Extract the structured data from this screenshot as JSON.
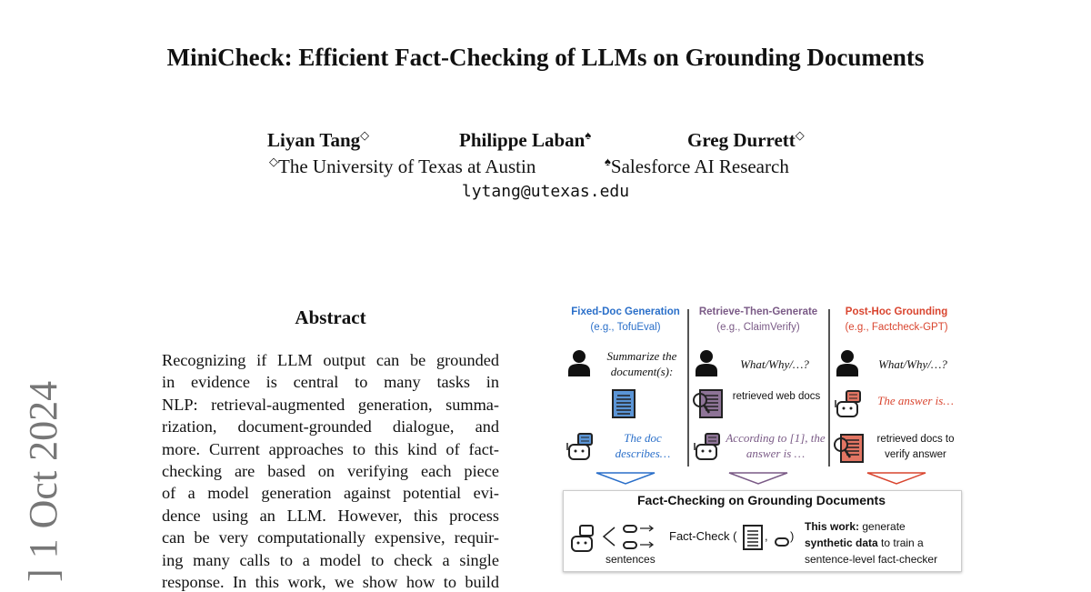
{
  "paper": {
    "title": "MiniCheck: Efficient Fact-Checking of LLMs on Grounding Documents",
    "authors": [
      {
        "name": "Liyan Tang",
        "mark": "◇"
      },
      {
        "name": "Philippe Laban",
        "mark": "♠"
      },
      {
        "name": "Greg Durrett",
        "mark": "◇"
      }
    ],
    "affiliations": [
      {
        "mark": "◇",
        "name": "The University of Texas at Austin"
      },
      {
        "mark": "♠",
        "name": "Salesforce AI Research"
      }
    ],
    "email": "lytang@utexas.edu",
    "arxiv_stamp": "] 1 Oct 2024",
    "abstract_heading": "Abstract",
    "abstract_lines": [
      "Recognizing if LLM output can be grounded",
      "in evidence is central to many tasks in",
      "NLP: retrieval-augmented generation, summa-",
      "rization, document-grounded dialogue, and",
      "more. Current approaches to this kind of fact-",
      "checking are based on verifying each piece",
      "of a model generation against potential evi-",
      "dence using an LLM. However, this process",
      "can be very computationally expensive, requir-",
      "ing many calls to a model to check a single",
      "response. In this work, we show how to build"
    ]
  },
  "figure": {
    "columns": [
      {
        "title": "Fixed-Doc Generation",
        "example": "(e.g., TofuEval)",
        "color": "#2a6fc9",
        "query": "Summarize the document(s):",
        "middle": "",
        "answer": "The doc describes…"
      },
      {
        "title": "Retrieve-Then-Generate",
        "example": "(e.g., ClaimVerify)",
        "color": "#7a5a86",
        "query": "What/Why/…?",
        "middle": "retrieved web docs",
        "answer": "According to [1], the answer is …"
      },
      {
        "title": "Post-Hoc Grounding",
        "example": "(e.g., Factcheck-GPT)",
        "color": "#d9452f",
        "query": "What/Why/…?",
        "middle": "The answer is…",
        "answer": "retrieved docs to verify answer"
      }
    ],
    "box_title": "Fact-Checking on Grounding Documents",
    "sentences_label": "sentences",
    "fact_check_label": "Fact-Check (",
    "comma": ",",
    "close_paren": ")",
    "this_work_bold": "This work:",
    "this_work_1": " generate",
    "synthetic_bold": "synthetic data",
    "this_work_2": " to train a",
    "this_work_3": "sentence-level fact-checker"
  }
}
